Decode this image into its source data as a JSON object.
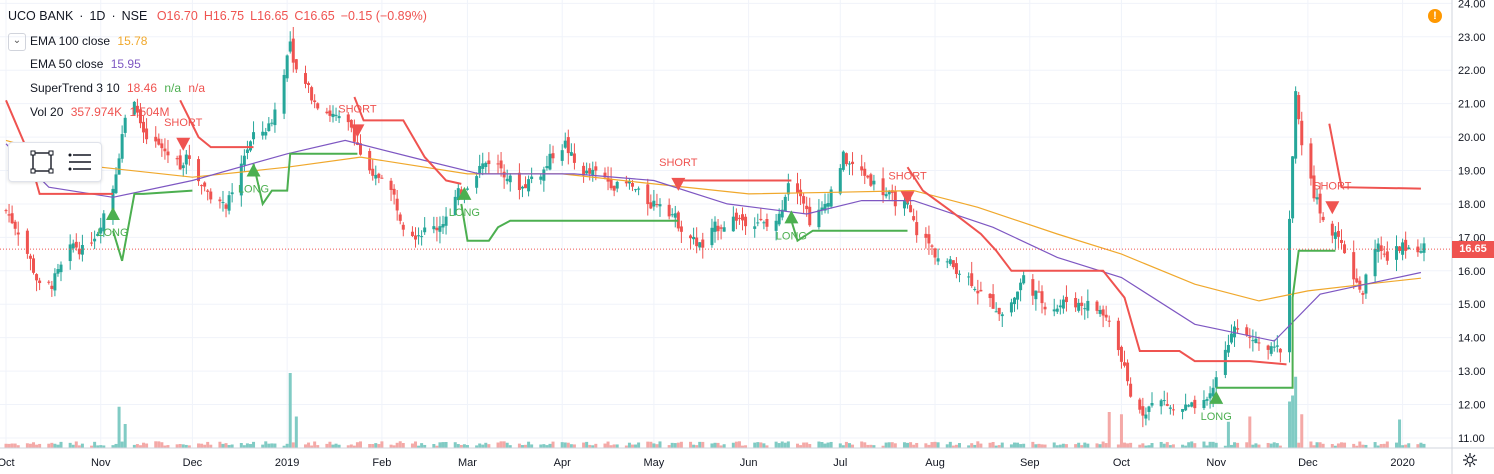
{
  "header": {
    "symbol": "UCO BANK",
    "sep1": "·",
    "interval": "1D",
    "sep2": "·",
    "exchange": "NSE",
    "open": "O16.70",
    "high": "H16.75",
    "low": "L16.65",
    "close": "C16.65",
    "change": "−0.15 (−0.89%)"
  },
  "legend": [
    {
      "label": "EMA 100 close",
      "value": "15.78",
      "value2": "",
      "value3": "",
      "color": "#f0a82c"
    },
    {
      "label": "EMA 50 close",
      "value": "15.95",
      "value2": "",
      "value3": "",
      "color": "#7e57c2"
    },
    {
      "label": "SuperTrend 3 10",
      "value": "18.46",
      "value2": "n/a",
      "value3": "n/a",
      "color": "#ef5350"
    },
    {
      "label": "Vol 20",
      "value": "357.974K",
      "value2": "1.504M",
      "value3": "",
      "color": "#ef5350"
    }
  ],
  "last_price_label": "16.65",
  "icons": {
    "collapse": "chevron-down-icon",
    "alert": "exclamation-icon",
    "rectangle_tool": "rectangle-icon",
    "text_tool": "text-lines-icon",
    "settings": "gear-icon"
  },
  "colors": {
    "up": "#26a69a",
    "down": "#ef5350",
    "supertrend_up": "#4caf50",
    "supertrend_down": "#ef5350",
    "ema100": "#f0a82c",
    "ema50": "#7e57c2",
    "vol_up": "#80cbc4",
    "vol_down": "#f4a9a7"
  },
  "chart_data": {
    "type": "candlestick",
    "y_axis": {
      "min": 10.7,
      "max": 24.1,
      "ticks": [
        11,
        12,
        13,
        14,
        15,
        16,
        17,
        18,
        19,
        20,
        21,
        22,
        23,
        24
      ],
      "position": "right"
    },
    "x_axis": {
      "start": "2018-10-01",
      "end": "2020-01-08",
      "labels": [
        {
          "text": "Oct",
          "date": "2018-10-01"
        },
        {
          "text": "Nov",
          "date": "2018-11-01"
        },
        {
          "text": "Dec",
          "date": "2018-12-01"
        },
        {
          "text": "2019",
          "date": "2019-01-01"
        },
        {
          "text": "Feb",
          "date": "2019-02-01"
        },
        {
          "text": "Mar",
          "date": "2019-03-01"
        },
        {
          "text": "Apr",
          "date": "2019-04-01"
        },
        {
          "text": "May",
          "date": "2019-05-01"
        },
        {
          "text": "Jun",
          "date": "2019-06-01"
        },
        {
          "text": "Jul",
          "date": "2019-07-01"
        },
        {
          "text": "Aug",
          "date": "2019-08-01"
        },
        {
          "text": "Sep",
          "date": "2019-09-01"
        },
        {
          "text": "Oct",
          "date": "2019-10-01"
        },
        {
          "text": "Nov",
          "date": "2019-11-01"
        },
        {
          "text": "Dec",
          "date": "2019-12-01"
        },
        {
          "text": "2020",
          "date": "2020-01-01"
        }
      ]
    },
    "grid": true,
    "close_path": [
      [
        "2018-10-01",
        17.8
      ],
      [
        "2018-10-05",
        17.2
      ],
      [
        "2018-10-09",
        16.3
      ],
      [
        "2018-10-12",
        15.5
      ],
      [
        "2018-10-16",
        15.6
      ],
      [
        "2018-10-19",
        16.1
      ],
      [
        "2018-10-23",
        16.8
      ],
      [
        "2018-10-26",
        16.6
      ],
      [
        "2018-10-31",
        17.2
      ],
      [
        "2018-11-05",
        18.5
      ],
      [
        "2018-11-09",
        20.5
      ],
      [
        "2018-11-12",
        21.2
      ],
      [
        "2018-11-15",
        20.0
      ],
      [
        "2018-11-19",
        19.8
      ],
      [
        "2018-11-23",
        19.5
      ],
      [
        "2018-11-27",
        19.2
      ],
      [
        "2018-11-30",
        19.4
      ],
      [
        "2018-12-04",
        18.6
      ],
      [
        "2018-12-07",
        18.3
      ],
      [
        "2018-12-11",
        17.9
      ],
      [
        "2018-12-14",
        18.2
      ],
      [
        "2018-12-18",
        19.5
      ],
      [
        "2018-12-21",
        20.0
      ],
      [
        "2018-12-26",
        20.3
      ],
      [
        "2018-12-28",
        20.8
      ],
      [
        "2019-01-02",
        22.8
      ],
      [
        "2019-01-04",
        22.0
      ],
      [
        "2019-01-08",
        21.4
      ],
      [
        "2019-01-11",
        21.0
      ],
      [
        "2019-01-15",
        20.7
      ],
      [
        "2019-01-18",
        20.5
      ],
      [
        "2019-01-22",
        20.3
      ],
      [
        "2019-01-25",
        19.5
      ],
      [
        "2019-01-29",
        18.7
      ],
      [
        "2019-02-01",
        18.9
      ],
      [
        "2019-02-05",
        18.2
      ],
      [
        "2019-02-08",
        17.4
      ],
      [
        "2019-02-12",
        17.1
      ],
      [
        "2019-02-15",
        17.2
      ],
      [
        "2019-02-19",
        17.3
      ],
      [
        "2019-02-22",
        17.6
      ],
      [
        "2019-02-26",
        18.3
      ],
      [
        "2019-03-01",
        18.6
      ],
      [
        "2019-03-05",
        19.1
      ],
      [
        "2019-03-08",
        19.3
      ],
      [
        "2019-03-12",
        19.1
      ],
      [
        "2019-03-15",
        18.7
      ],
      [
        "2019-03-19",
        18.5
      ],
      [
        "2019-03-22",
        18.8
      ],
      [
        "2019-03-26",
        19.0
      ],
      [
        "2019-03-29",
        19.5
      ],
      [
        "2019-04-02",
        19.8
      ],
      [
        "2019-04-05",
        19.2
      ],
      [
        "2019-04-09",
        18.9
      ],
      [
        "2019-04-12",
        18.9
      ],
      [
        "2019-04-16",
        18.7
      ],
      [
        "2019-04-19",
        18.5
      ],
      [
        "2019-04-23",
        18.6
      ],
      [
        "2019-04-26",
        18.3
      ],
      [
        "2019-04-30",
        18.0
      ],
      [
        "2019-05-03",
        18.1
      ],
      [
        "2019-05-07",
        17.7
      ],
      [
        "2019-05-10",
        17.3
      ],
      [
        "2019-05-14",
        16.9
      ],
      [
        "2019-05-17",
        16.7
      ],
      [
        "2019-05-21",
        17.3
      ],
      [
        "2019-05-24",
        17.4
      ],
      [
        "2019-05-28",
        17.6
      ],
      [
        "2019-05-31",
        17.5
      ],
      [
        "2019-06-04",
        17.5
      ],
      [
        "2019-06-07",
        17.3
      ],
      [
        "2019-06-11",
        17.6
      ],
      [
        "2019-06-14",
        18.7
      ],
      [
        "2019-06-18",
        18.4
      ],
      [
        "2019-06-21",
        17.5
      ],
      [
        "2019-06-25",
        17.8
      ],
      [
        "2019-06-28",
        18.4
      ],
      [
        "2019-07-02",
        19.4
      ],
      [
        "2019-07-05",
        19.1
      ],
      [
        "2019-07-09",
        18.9
      ],
      [
        "2019-07-12",
        18.6
      ],
      [
        "2019-07-16",
        18.3
      ],
      [
        "2019-07-19",
        18.1
      ],
      [
        "2019-07-23",
        17.9
      ],
      [
        "2019-07-26",
        17.2
      ],
      [
        "2019-07-30",
        16.8
      ],
      [
        "2019-08-02",
        16.4
      ],
      [
        "2019-08-06",
        16.2
      ],
      [
        "2019-08-09",
        16.0
      ],
      [
        "2019-08-13",
        15.7
      ],
      [
        "2019-08-16",
        15.3
      ],
      [
        "2019-08-20",
        15.0
      ],
      [
        "2019-08-23",
        14.7
      ],
      [
        "2019-08-27",
        15.2
      ],
      [
        "2019-08-30",
        15.8
      ],
      [
        "2019-09-03",
        15.3
      ],
      [
        "2019-09-06",
        15.0
      ],
      [
        "2019-09-10",
        14.9
      ],
      [
        "2019-09-13",
        15.1
      ],
      [
        "2019-09-17",
        15.0
      ],
      [
        "2019-09-20",
        15.0
      ],
      [
        "2019-09-24",
        14.8
      ],
      [
        "2019-09-27",
        14.5
      ],
      [
        "2019-10-01",
        13.4
      ],
      [
        "2019-10-04",
        12.2
      ],
      [
        "2019-10-08",
        11.8
      ],
      [
        "2019-10-11",
        12.0
      ],
      [
        "2019-10-15",
        12.1
      ],
      [
        "2019-10-18",
        11.8
      ],
      [
        "2019-10-22",
        11.9
      ],
      [
        "2019-10-25",
        11.9
      ],
      [
        "2019-10-29",
        12.0
      ],
      [
        "2019-11-01",
        12.8
      ],
      [
        "2019-11-05",
        13.9
      ],
      [
        "2019-11-08",
        14.4
      ],
      [
        "2019-11-12",
        14.0
      ],
      [
        "2019-11-15",
        13.8
      ],
      [
        "2019-11-19",
        13.6
      ],
      [
        "2019-11-22",
        13.7
      ],
      [
        "2019-11-25",
        17.6
      ],
      [
        "2019-11-27",
        21.2
      ],
      [
        "2019-11-29",
        19.6
      ],
      [
        "2019-12-03",
        18.3
      ],
      [
        "2019-12-06",
        17.6
      ],
      [
        "2019-12-10",
        17.0
      ],
      [
        "2019-12-13",
        16.6
      ],
      [
        "2019-12-17",
        15.6
      ],
      [
        "2019-12-19",
        15.4
      ],
      [
        "2019-12-23",
        16.8
      ],
      [
        "2019-12-27",
        16.3
      ],
      [
        "2019-12-31",
        16.7
      ],
      [
        "2020-01-03",
        16.8
      ],
      [
        "2020-01-07",
        16.65
      ]
    ],
    "ema100": [
      [
        "2018-10-01",
        19.9
      ],
      [
        "2018-11-01",
        19.1
      ],
      [
        "2018-12-01",
        18.8
      ],
      [
        "2019-01-01",
        19.1
      ],
      [
        "2019-01-25",
        19.4
      ],
      [
        "2019-03-01",
        18.9
      ],
      [
        "2019-04-01",
        18.9
      ],
      [
        "2019-05-01",
        18.6
      ],
      [
        "2019-06-01",
        18.3
      ],
      [
        "2019-07-01",
        18.35
      ],
      [
        "2019-07-25",
        18.4
      ],
      [
        "2019-08-15",
        17.9
      ],
      [
        "2019-09-10",
        17.1
      ],
      [
        "2019-10-01",
        16.5
      ],
      [
        "2019-10-25",
        15.6
      ],
      [
        "2019-11-15",
        15.1
      ],
      [
        "2019-12-01",
        15.4
      ],
      [
        "2019-12-20",
        15.6
      ],
      [
        "2020-01-07",
        15.78
      ]
    ],
    "ema50": [
      [
        "2018-10-01",
        19.8
      ],
      [
        "2018-10-15",
        18.5
      ],
      [
        "2018-11-05",
        18.2
      ],
      [
        "2018-12-01",
        18.7
      ],
      [
        "2019-01-01",
        19.5
      ],
      [
        "2019-01-20",
        19.9
      ],
      [
        "2019-02-15",
        19.3
      ],
      [
        "2019-03-05",
        18.9
      ],
      [
        "2019-04-05",
        18.9
      ],
      [
        "2019-05-01",
        18.7
      ],
      [
        "2019-05-25",
        18.0
      ],
      [
        "2019-06-20",
        17.7
      ],
      [
        "2019-07-08",
        18.1
      ],
      [
        "2019-07-25",
        18.1
      ],
      [
        "2019-08-20",
        17.3
      ],
      [
        "2019-09-10",
        16.4
      ],
      [
        "2019-10-01",
        15.8
      ],
      [
        "2019-10-25",
        14.4
      ],
      [
        "2019-11-20",
        13.9
      ],
      [
        "2019-12-05",
        15.3
      ],
      [
        "2019-12-20",
        15.6
      ],
      [
        "2020-01-07",
        15.95
      ]
    ],
    "supertrend_down": [
      [
        [
          "2018-10-01",
          21.1
        ],
        [
          "2018-10-08",
          19.6
        ],
        [
          "2018-10-12",
          18.3
        ],
        [
          "2018-11-05",
          18.3
        ]
      ],
      [
        [
          "2018-11-27",
          21.1
        ],
        [
          "2018-12-03",
          20.0
        ],
        [
          "2018-12-07",
          19.7
        ],
        [
          "2018-12-21",
          19.7
        ]
      ],
      [
        [
          "2019-01-23",
          21.2
        ],
        [
          "2019-01-26",
          20.5
        ],
        [
          "2019-02-08",
          20.5
        ],
        [
          "2019-02-15",
          19.4
        ],
        [
          "2019-02-22",
          18.7
        ],
        [
          "2019-02-27",
          18.6
        ]
      ],
      [
        [
          "2019-05-09",
          18.7
        ],
        [
          "2019-06-15",
          18.7
        ]
      ],
      [
        [
          "2019-07-23",
          19.1
        ],
        [
          "2019-07-28",
          18.4
        ],
        [
          "2019-08-06",
          17.8
        ],
        [
          "2019-08-16",
          17.1
        ],
        [
          "2019-08-21",
          16.6
        ],
        [
          "2019-08-26",
          16.0
        ],
        [
          "2019-09-25",
          16.0
        ],
        [
          "2019-10-02",
          15.2
        ],
        [
          "2019-10-07",
          13.6
        ],
        [
          "2019-10-20",
          13.6
        ],
        [
          "2019-10-25",
          13.3
        ],
        [
          "2019-11-05",
          13.3
        ],
        [
          "2019-11-12",
          13.3
        ],
        [
          "2019-11-24",
          13.2
        ]
      ],
      [
        [
          "2019-12-08",
          20.4
        ],
        [
          "2019-12-12",
          18.5
        ],
        [
          "2020-01-07",
          18.46
        ]
      ]
    ],
    "supertrend_up": [
      [
        [
          "2018-11-05",
          17.2
        ],
        [
          "2018-11-08",
          16.3
        ],
        [
          "2018-11-12",
          18.3
        ],
        [
          "2018-11-15",
          18.3
        ],
        [
          "2018-12-01",
          18.4
        ]
      ],
      [
        [
          "2018-12-21",
          19.2
        ],
        [
          "2018-12-24",
          18.0
        ],
        [
          "2018-12-27",
          18.4
        ],
        [
          "2019-01-01",
          18.4
        ],
        [
          "2019-01-02",
          19.5
        ],
        [
          "2019-01-24",
          19.5
        ]
      ],
      [
        [
          "2019-02-27",
          18.0
        ],
        [
          "2019-03-01",
          16.9
        ],
        [
          "2019-03-08",
          16.9
        ],
        [
          "2019-03-11",
          17.3
        ],
        [
          "2019-03-15",
          17.5
        ],
        [
          "2019-05-09",
          17.5
        ]
      ],
      [
        [
          "2019-06-15",
          17.5
        ],
        [
          "2019-06-17",
          16.9
        ],
        [
          "2019-06-22",
          17.2
        ],
        [
          "2019-06-27",
          17.2
        ],
        [
          "2019-07-23",
          17.2
        ]
      ],
      [
        [
          "2019-11-01",
          12.5
        ],
        [
          "2019-11-03",
          12.5
        ],
        [
          "2019-11-26",
          12.5
        ],
        [
          "2019-11-26",
          15.2
        ],
        [
          "2019-11-28",
          16.6
        ],
        [
          "2019-12-10",
          16.6
        ]
      ]
    ],
    "signals": [
      {
        "type": "LONG",
        "date": "2018-11-05",
        "price": 17.7
      },
      {
        "type": "SHORT",
        "date": "2018-11-28",
        "price": 19.8
      },
      {
        "type": "LONG",
        "date": "2018-12-21",
        "price": 19.0
      },
      {
        "type": "SHORT",
        "date": "2019-01-24",
        "price": 20.2
      },
      {
        "type": "LONG",
        "date": "2019-02-28",
        "price": 18.3
      },
      {
        "type": "SHORT",
        "date": "2019-05-09",
        "price": 18.6
      },
      {
        "type": "LONG",
        "date": "2019-06-15",
        "price": 17.6
      },
      {
        "type": "SHORT",
        "date": "2019-07-23",
        "price": 18.2
      },
      {
        "type": "LONG",
        "date": "2019-11-01",
        "price": 12.2
      },
      {
        "type": "SHORT",
        "date": "2019-12-09",
        "price": 17.9
      }
    ],
    "volume_spikes": [
      {
        "date": "2018-11-07",
        "rel": 0.55,
        "up": true
      },
      {
        "date": "2018-11-09",
        "rel": 0.32,
        "up": true
      },
      {
        "date": "2019-01-02",
        "rel": 1.0,
        "up": true
      },
      {
        "date": "2019-01-04",
        "rel": 0.42,
        "up": true
      },
      {
        "date": "2019-09-27",
        "rel": 0.48,
        "up": false
      },
      {
        "date": "2019-10-01",
        "rel": 0.45,
        "up": false
      },
      {
        "date": "2019-11-05",
        "rel": 0.35,
        "up": true
      },
      {
        "date": "2019-11-12",
        "rel": 0.42,
        "up": false
      },
      {
        "date": "2019-11-25",
        "rel": 0.62,
        "up": true
      },
      {
        "date": "2019-11-26",
        "rel": 0.7,
        "up": true
      },
      {
        "date": "2019-11-27",
        "rel": 0.95,
        "up": true
      },
      {
        "date": "2019-11-29",
        "rel": 0.45,
        "up": false
      },
      {
        "date": "2019-12-31",
        "rel": 0.38,
        "up": true
      }
    ]
  }
}
